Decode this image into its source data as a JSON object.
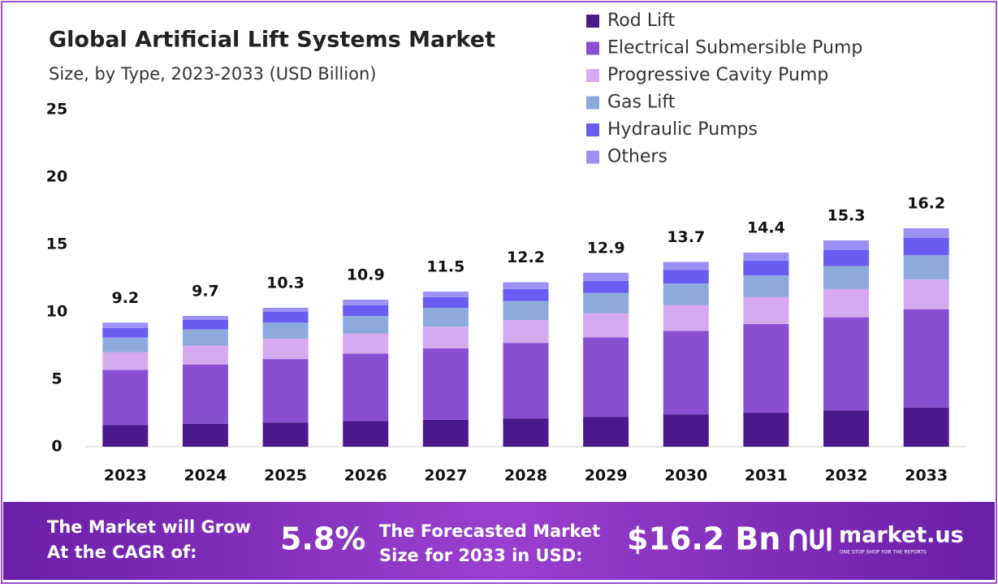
{
  "chart_data": {
    "type": "stacked-bar",
    "title": "Global Artificial Lift Systems Market",
    "subtitle": "Size, by Type, 2023-2033 (USD Billion)",
    "categories": [
      "2023",
      "2024",
      "2025",
      "2026",
      "2027",
      "2028",
      "2029",
      "2030",
      "2031",
      "2032",
      "2033"
    ],
    "series": [
      {
        "name": "Rod Lift",
        "color": "#4a1a8c",
        "values": [
          1.6,
          1.7,
          1.8,
          1.9,
          2.0,
          2.1,
          2.2,
          2.4,
          2.5,
          2.7,
          2.9
        ]
      },
      {
        "name": "Electrical Submersible Pump",
        "color": "#8a4fd0",
        "values": [
          4.1,
          4.4,
          4.7,
          5.0,
          5.3,
          5.6,
          5.9,
          6.2,
          6.6,
          6.9,
          7.3
        ]
      },
      {
        "name": "Progressive Cavity Pump",
        "color": "#d6aaef",
        "values": [
          1.3,
          1.4,
          1.5,
          1.5,
          1.6,
          1.7,
          1.8,
          1.9,
          2.0,
          2.1,
          2.2
        ]
      },
      {
        "name": "Gas Lift",
        "color": "#8eaadc",
        "values": [
          1.1,
          1.2,
          1.2,
          1.3,
          1.4,
          1.4,
          1.5,
          1.6,
          1.6,
          1.7,
          1.8
        ]
      },
      {
        "name": "Hydraulic Pumps",
        "color": "#6a5cf0",
        "values": [
          0.7,
          0.7,
          0.8,
          0.8,
          0.8,
          0.9,
          0.9,
          1.0,
          1.1,
          1.2,
          1.3
        ]
      },
      {
        "name": "Others",
        "color": "#9d90f5",
        "values": [
          0.4,
          0.3,
          0.3,
          0.4,
          0.4,
          0.5,
          0.6,
          0.6,
          0.6,
          0.7,
          0.7
        ]
      }
    ],
    "totals": [
      9.2,
      9.7,
      10.3,
      10.9,
      11.5,
      12.2,
      12.9,
      13.7,
      14.4,
      15.3,
      16.2
    ],
    "ylim": [
      0,
      25
    ],
    "yticks": [
      0,
      5,
      10,
      15,
      20,
      25
    ],
    "grid": false
  },
  "footer": {
    "cagr_text": [
      "The Market will Grow",
      "At the CAGR of:"
    ],
    "cagr": "5.8%",
    "forecast_text": [
      "The Forecasted Market",
      "Size for 2033 in USD:"
    ],
    "forecast": "$16.2 Bn",
    "brand": "market.us",
    "tagline": "ONE STOP SHOP FOR THE REPORTS"
  }
}
